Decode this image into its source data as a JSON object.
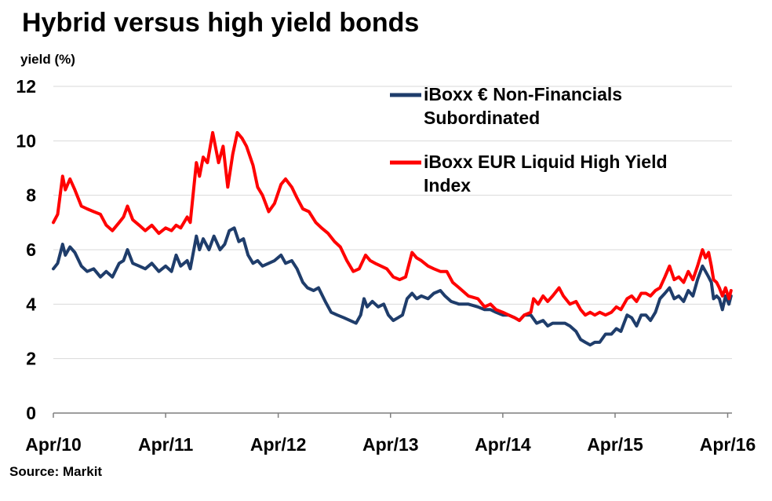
{
  "chart_data": {
    "type": "line",
    "title": "Hybrid versus high yield bonds",
    "ylabel": "yield (%)",
    "source": "Source: Markit",
    "ylim": [
      0,
      12
    ],
    "yticks": [
      0,
      2,
      4,
      6,
      8,
      10,
      12
    ],
    "xlim": [
      "2010-04-01",
      "2016-04-15"
    ],
    "xticks": [
      {
        "label": "Apr/10",
        "date": "2010-04-01"
      },
      {
        "label": "Apr/11",
        "date": "2011-04-01"
      },
      {
        "label": "Apr/12",
        "date": "2012-04-01"
      },
      {
        "label": "Apr/13",
        "date": "2013-04-01"
      },
      {
        "label": "Apr/14",
        "date": "2014-04-01"
      },
      {
        "label": "Apr/15",
        "date": "2015-04-01"
      },
      {
        "label": "Apr/16",
        "date": "2016-04-01"
      }
    ],
    "grid": "horizontal",
    "legend_position": "top-right",
    "series": [
      {
        "name": "iBoxx € Non-Financials Subordinated",
        "legend_lines": [
          "iBoxx € Non-Financials",
          "Subordinated"
        ],
        "color": "#1f3d6b",
        "points": [
          [
            "2010-04-01",
            5.3
          ],
          [
            "2010-04-15",
            5.5
          ],
          [
            "2010-05-01",
            6.2
          ],
          [
            "2010-05-10",
            5.8
          ],
          [
            "2010-05-25",
            6.1
          ],
          [
            "2010-06-10",
            5.9
          ],
          [
            "2010-07-01",
            5.4
          ],
          [
            "2010-07-20",
            5.2
          ],
          [
            "2010-08-10",
            5.3
          ],
          [
            "2010-09-01",
            5.0
          ],
          [
            "2010-09-20",
            5.2
          ],
          [
            "2010-10-10",
            5.0
          ],
          [
            "2010-11-01",
            5.5
          ],
          [
            "2010-11-15",
            5.6
          ],
          [
            "2010-11-28",
            6.0
          ],
          [
            "2010-12-15",
            5.5
          ],
          [
            "2011-01-05",
            5.4
          ],
          [
            "2011-01-25",
            5.3
          ],
          [
            "2011-02-15",
            5.5
          ],
          [
            "2011-03-10",
            5.2
          ],
          [
            "2011-04-01",
            5.4
          ],
          [
            "2011-04-20",
            5.2
          ],
          [
            "2011-05-05",
            5.8
          ],
          [
            "2011-05-20",
            5.4
          ],
          [
            "2011-06-10",
            5.6
          ],
          [
            "2011-06-20",
            5.3
          ],
          [
            "2011-07-10",
            6.5
          ],
          [
            "2011-07-20",
            6.0
          ],
          [
            "2011-08-01",
            6.4
          ],
          [
            "2011-08-20",
            6.0
          ],
          [
            "2011-09-05",
            6.5
          ],
          [
            "2011-09-25",
            6.0
          ],
          [
            "2011-10-10",
            6.2
          ],
          [
            "2011-10-25",
            6.7
          ],
          [
            "2011-11-10",
            6.8
          ],
          [
            "2011-11-25",
            6.3
          ],
          [
            "2011-12-10",
            6.4
          ],
          [
            "2011-12-25",
            5.8
          ],
          [
            "2012-01-10",
            5.5
          ],
          [
            "2012-01-25",
            5.6
          ],
          [
            "2012-02-10",
            5.4
          ],
          [
            "2012-03-01",
            5.5
          ],
          [
            "2012-03-20",
            5.6
          ],
          [
            "2012-04-10",
            5.8
          ],
          [
            "2012-04-25",
            5.5
          ],
          [
            "2012-05-15",
            5.6
          ],
          [
            "2012-06-01",
            5.3
          ],
          [
            "2012-06-20",
            4.8
          ],
          [
            "2012-07-05",
            4.6
          ],
          [
            "2012-07-25",
            4.5
          ],
          [
            "2012-08-10",
            4.6
          ],
          [
            "2012-09-01",
            4.1
          ],
          [
            "2012-09-20",
            3.7
          ],
          [
            "2012-10-10",
            3.6
          ],
          [
            "2012-11-01",
            3.5
          ],
          [
            "2012-11-20",
            3.4
          ],
          [
            "2012-12-10",
            3.3
          ],
          [
            "2012-12-25",
            3.6
          ],
          [
            "2013-01-05",
            4.2
          ],
          [
            "2013-01-15",
            3.9
          ],
          [
            "2013-02-01",
            4.1
          ],
          [
            "2013-02-20",
            3.9
          ],
          [
            "2013-03-10",
            4.0
          ],
          [
            "2013-03-25",
            3.6
          ],
          [
            "2013-04-10",
            3.4
          ],
          [
            "2013-04-25",
            3.5
          ],
          [
            "2013-05-10",
            3.6
          ],
          [
            "2013-05-25",
            4.2
          ],
          [
            "2013-06-10",
            4.4
          ],
          [
            "2013-06-25",
            4.2
          ],
          [
            "2013-07-10",
            4.3
          ],
          [
            "2013-08-01",
            4.2
          ],
          [
            "2013-08-20",
            4.4
          ],
          [
            "2013-09-10",
            4.5
          ],
          [
            "2013-09-25",
            4.3
          ],
          [
            "2013-10-15",
            4.1
          ],
          [
            "2013-11-10",
            4.0
          ],
          [
            "2013-12-10",
            4.0
          ],
          [
            "2014-01-10",
            3.9
          ],
          [
            "2014-02-01",
            3.8
          ],
          [
            "2014-02-20",
            3.8
          ],
          [
            "2014-03-10",
            3.7
          ],
          [
            "2014-04-01",
            3.6
          ],
          [
            "2014-04-20",
            3.6
          ],
          [
            "2014-05-10",
            3.5
          ],
          [
            "2014-05-25",
            3.4
          ],
          [
            "2014-06-10",
            3.6
          ],
          [
            "2014-07-01",
            3.6
          ],
          [
            "2014-07-20",
            3.3
          ],
          [
            "2014-08-10",
            3.4
          ],
          [
            "2014-08-25",
            3.2
          ],
          [
            "2014-09-10",
            3.3
          ],
          [
            "2014-10-01",
            3.3
          ],
          [
            "2014-10-20",
            3.3
          ],
          [
            "2014-11-05",
            3.2
          ],
          [
            "2014-11-25",
            3.0
          ],
          [
            "2014-12-10",
            2.7
          ],
          [
            "2014-12-25",
            2.6
          ],
          [
            "2015-01-10",
            2.5
          ],
          [
            "2015-01-25",
            2.6
          ],
          [
            "2015-02-10",
            2.6
          ],
          [
            "2015-03-01",
            2.9
          ],
          [
            "2015-03-20",
            2.9
          ],
          [
            "2015-04-05",
            3.1
          ],
          [
            "2015-04-20",
            3.0
          ],
          [
            "2015-05-10",
            3.6
          ],
          [
            "2015-05-25",
            3.5
          ],
          [
            "2015-06-10",
            3.2
          ],
          [
            "2015-06-25",
            3.6
          ],
          [
            "2015-07-10",
            3.6
          ],
          [
            "2015-07-25",
            3.4
          ],
          [
            "2015-08-10",
            3.7
          ],
          [
            "2015-08-25",
            4.2
          ],
          [
            "2015-09-10",
            4.4
          ],
          [
            "2015-09-25",
            4.6
          ],
          [
            "2015-10-10",
            4.2
          ],
          [
            "2015-10-25",
            4.3
          ],
          [
            "2015-11-10",
            4.1
          ],
          [
            "2015-11-25",
            4.5
          ],
          [
            "2015-12-10",
            4.3
          ],
          [
            "2015-12-25",
            4.9
          ],
          [
            "2016-01-10",
            5.4
          ],
          [
            "2016-01-20",
            5.2
          ],
          [
            "2016-01-30",
            5.0
          ],
          [
            "2016-02-08",
            4.8
          ],
          [
            "2016-02-15",
            4.2
          ],
          [
            "2016-02-25",
            4.3
          ],
          [
            "2016-03-05",
            4.2
          ],
          [
            "2016-03-15",
            3.8
          ],
          [
            "2016-03-25",
            4.3
          ],
          [
            "2016-04-05",
            4.0
          ],
          [
            "2016-04-12",
            4.3
          ]
        ]
      },
      {
        "name": "iBoxx EUR Liquid High Yield Index",
        "legend_lines": [
          "iBoxx EUR Liquid High Yield",
          "Index"
        ],
        "color": "#ff0000",
        "points": [
          [
            "2010-04-01",
            7.0
          ],
          [
            "2010-04-15",
            7.3
          ],
          [
            "2010-05-01",
            8.7
          ],
          [
            "2010-05-10",
            8.2
          ],
          [
            "2010-05-25",
            8.6
          ],
          [
            "2010-06-10",
            8.2
          ],
          [
            "2010-07-01",
            7.6
          ],
          [
            "2010-07-20",
            7.5
          ],
          [
            "2010-08-10",
            7.4
          ],
          [
            "2010-09-01",
            7.3
          ],
          [
            "2010-09-20",
            6.9
          ],
          [
            "2010-10-10",
            6.7
          ],
          [
            "2010-11-01",
            7.0
          ],
          [
            "2010-11-15",
            7.2
          ],
          [
            "2010-11-28",
            7.6
          ],
          [
            "2010-12-15",
            7.1
          ],
          [
            "2011-01-05",
            6.9
          ],
          [
            "2011-01-25",
            6.7
          ],
          [
            "2011-02-15",
            6.9
          ],
          [
            "2011-03-10",
            6.6
          ],
          [
            "2011-04-01",
            6.8
          ],
          [
            "2011-04-20",
            6.7
          ],
          [
            "2011-05-05",
            6.9
          ],
          [
            "2011-05-20",
            6.8
          ],
          [
            "2011-06-10",
            7.2
          ],
          [
            "2011-06-20",
            7.0
          ],
          [
            "2011-07-10",
            9.2
          ],
          [
            "2011-07-20",
            8.7
          ],
          [
            "2011-08-01",
            9.4
          ],
          [
            "2011-08-15",
            9.2
          ],
          [
            "2011-09-01",
            10.3
          ],
          [
            "2011-09-20",
            9.2
          ],
          [
            "2011-10-05",
            9.8
          ],
          [
            "2011-10-20",
            8.3
          ],
          [
            "2011-11-05",
            9.5
          ],
          [
            "2011-11-20",
            10.3
          ],
          [
            "2011-12-05",
            10.1
          ],
          [
            "2011-12-20",
            9.8
          ],
          [
            "2012-01-10",
            9.1
          ],
          [
            "2012-01-25",
            8.3
          ],
          [
            "2012-02-10",
            8.0
          ],
          [
            "2012-03-01",
            7.4
          ],
          [
            "2012-03-20",
            7.7
          ],
          [
            "2012-04-10",
            8.4
          ],
          [
            "2012-04-25",
            8.6
          ],
          [
            "2012-05-15",
            8.3
          ],
          [
            "2012-06-01",
            7.9
          ],
          [
            "2012-06-20",
            7.5
          ],
          [
            "2012-07-10",
            7.4
          ],
          [
            "2012-08-01",
            7.0
          ],
          [
            "2012-08-20",
            6.8
          ],
          [
            "2012-09-10",
            6.6
          ],
          [
            "2012-10-01",
            6.3
          ],
          [
            "2012-10-20",
            6.1
          ],
          [
            "2012-11-10",
            5.6
          ],
          [
            "2012-12-01",
            5.2
          ],
          [
            "2012-12-20",
            5.3
          ],
          [
            "2013-01-10",
            5.8
          ],
          [
            "2013-01-25",
            5.6
          ],
          [
            "2013-02-10",
            5.5
          ],
          [
            "2013-03-01",
            5.4
          ],
          [
            "2013-03-20",
            5.3
          ],
          [
            "2013-04-10",
            5.0
          ],
          [
            "2013-05-01",
            4.9
          ],
          [
            "2013-05-20",
            5.0
          ],
          [
            "2013-06-10",
            5.9
          ],
          [
            "2013-06-25",
            5.7
          ],
          [
            "2013-07-10",
            5.6
          ],
          [
            "2013-08-01",
            5.4
          ],
          [
            "2013-08-20",
            5.3
          ],
          [
            "2013-09-10",
            5.2
          ],
          [
            "2013-10-01",
            5.2
          ],
          [
            "2013-10-20",
            4.8
          ],
          [
            "2013-11-10",
            4.6
          ],
          [
            "2013-12-10",
            4.3
          ],
          [
            "2014-01-10",
            4.2
          ],
          [
            "2014-02-01",
            3.9
          ],
          [
            "2014-02-20",
            4.0
          ],
          [
            "2014-03-10",
            3.8
          ],
          [
            "2014-04-01",
            3.7
          ],
          [
            "2014-04-20",
            3.6
          ],
          [
            "2014-05-10",
            3.5
          ],
          [
            "2014-05-25",
            3.4
          ],
          [
            "2014-06-10",
            3.6
          ],
          [
            "2014-07-01",
            3.7
          ],
          [
            "2014-07-10",
            4.2
          ],
          [
            "2014-07-25",
            4.0
          ],
          [
            "2014-08-10",
            4.3
          ],
          [
            "2014-08-25",
            4.1
          ],
          [
            "2014-09-10",
            4.3
          ],
          [
            "2014-10-01",
            4.6
          ],
          [
            "2014-10-15",
            4.3
          ],
          [
            "2014-11-05",
            4.0
          ],
          [
            "2014-11-25",
            4.1
          ],
          [
            "2014-12-10",
            3.8
          ],
          [
            "2014-12-25",
            3.6
          ],
          [
            "2015-01-10",
            3.7
          ],
          [
            "2015-01-25",
            3.6
          ],
          [
            "2015-02-10",
            3.7
          ],
          [
            "2015-03-01",
            3.6
          ],
          [
            "2015-03-20",
            3.7
          ],
          [
            "2015-04-05",
            3.9
          ],
          [
            "2015-04-20",
            3.8
          ],
          [
            "2015-05-10",
            4.2
          ],
          [
            "2015-05-25",
            4.3
          ],
          [
            "2015-06-10",
            4.1
          ],
          [
            "2015-06-25",
            4.4
          ],
          [
            "2015-07-10",
            4.4
          ],
          [
            "2015-07-25",
            4.3
          ],
          [
            "2015-08-10",
            4.5
          ],
          [
            "2015-08-25",
            4.6
          ],
          [
            "2015-09-10",
            5.0
          ],
          [
            "2015-09-25",
            5.4
          ],
          [
            "2015-10-10",
            4.9
          ],
          [
            "2015-10-25",
            5.0
          ],
          [
            "2015-11-10",
            4.8
          ],
          [
            "2015-11-25",
            5.2
          ],
          [
            "2015-12-10",
            4.9
          ],
          [
            "2015-12-25",
            5.4
          ],
          [
            "2016-01-10",
            6.0
          ],
          [
            "2016-01-20",
            5.7
          ],
          [
            "2016-01-30",
            5.9
          ],
          [
            "2016-02-08",
            5.4
          ],
          [
            "2016-02-15",
            4.9
          ],
          [
            "2016-02-25",
            4.8
          ],
          [
            "2016-03-05",
            4.6
          ],
          [
            "2016-03-15",
            4.3
          ],
          [
            "2016-03-25",
            4.6
          ],
          [
            "2016-04-05",
            4.2
          ],
          [
            "2016-04-12",
            4.5
          ]
        ]
      }
    ]
  }
}
